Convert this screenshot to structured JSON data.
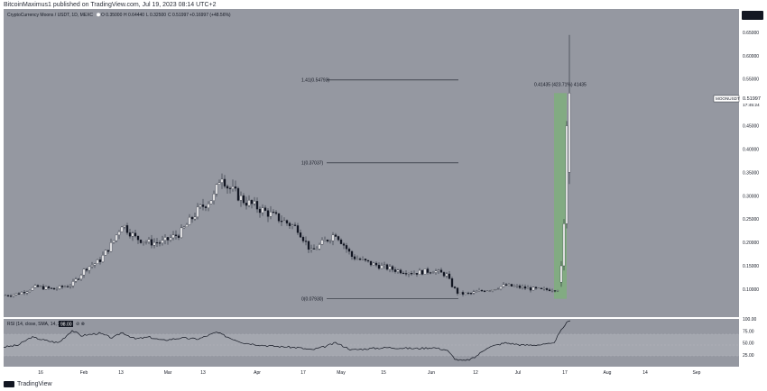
{
  "header": {
    "publisher": "BitcoinMaximus1 published on TradingView.com, Jul 19, 2023 08:14 UTC+2"
  },
  "footer": {
    "brand": "TradingView"
  },
  "symbol": {
    "title": "CryptoCurrency Moons / USDT, 1D, MEXC",
    "ohlc": [
      {
        "k": "O",
        "v": "0.35000"
      },
      {
        "k": "H",
        "v": "0.64440"
      },
      {
        "k": "L",
        "v": "0.32500"
      },
      {
        "k": "C",
        "v": "0.51997"
      }
    ],
    "change": "+0.16997 (+48.56%)"
  },
  "price_tag": {
    "symbol": "MOONUSDT",
    "price": "0.51997",
    "countdown": "17:45:24"
  },
  "fib_levels": [
    {
      "label": "1.41(0.54793)",
      "value": 0.54793
    },
    {
      "label": "1(0.37037)",
      "value": 0.37037
    },
    {
      "label": "0(0.07930)",
      "value": 0.0793
    }
  ],
  "measure_label": "0.41435 (423.71%) 41435",
  "rsi": {
    "title": "RSI (14, close, SMA, 14, 2)",
    "value": "98.00",
    "ticks": [
      "100.00",
      "75.00",
      "50.00",
      "25.00"
    ]
  },
  "colors": {
    "background": "#9598a1",
    "up": "#ffffff",
    "down": "#131722",
    "measure": "#7fae7d",
    "rsi_band": "#a4a7af"
  },
  "chart_data": [
    {
      "type": "candlestick",
      "title": "CryptoCurrency Moons / USDT, 1D, MEXC",
      "ylim": [
        0.04,
        0.7
      ],
      "y_ticks": [
        "0.65000",
        "0.60000",
        "0.55000",
        "0.50000",
        "0.45000",
        "0.40000",
        "0.35000",
        "0.30000",
        "0.25000",
        "0.20000",
        "0.15000",
        "0.10000"
      ],
      "x_ticks": [
        "16",
        "Feb",
        "13",
        "Mar",
        "13",
        "Apr",
        "17",
        "May",
        "15",
        "Jun",
        "12",
        "Jul",
        "17",
        "Aug",
        "14",
        "Sep"
      ],
      "x_tick_positions": [
        45,
        93,
        134,
        186,
        225,
        285,
        336,
        378,
        425,
        478,
        527,
        574,
        626,
        673,
        715,
        772
      ],
      "anchors": [
        [
          0,
          0.085
        ],
        [
          20,
          0.09
        ],
        [
          40,
          0.105
        ],
        [
          60,
          0.1
        ],
        [
          80,
          0.11
        ],
        [
          95,
          0.145
        ],
        [
          110,
          0.16
        ],
        [
          125,
          0.2
        ],
        [
          135,
          0.24
        ],
        [
          150,
          0.21
        ],
        [
          165,
          0.2
        ],
        [
          180,
          0.2
        ],
        [
          200,
          0.22
        ],
        [
          220,
          0.27
        ],
        [
          238,
          0.3
        ],
        [
          245,
          0.35
        ],
        [
          252,
          0.32
        ],
        [
          270,
          0.29
        ],
        [
          290,
          0.27
        ],
        [
          310,
          0.25
        ],
        [
          330,
          0.23
        ],
        [
          345,
          0.18
        ],
        [
          355,
          0.195
        ],
        [
          372,
          0.22
        ],
        [
          390,
          0.17
        ],
        [
          410,
          0.155
        ],
        [
          440,
          0.14
        ],
        [
          460,
          0.135
        ],
        [
          480,
          0.14
        ],
        [
          495,
          0.13
        ],
        [
          500,
          0.11
        ],
        [
          508,
          0.09
        ],
        [
          520,
          0.09
        ],
        [
          530,
          0.095
        ],
        [
          545,
          0.1
        ],
        [
          560,
          0.108
        ],
        [
          580,
          0.103
        ],
        [
          600,
          0.098
        ],
        [
          613,
          0.1
        ],
        [
          618,
          0.1
        ],
        [
          620,
          0.11
        ]
      ],
      "spike": [
        {
          "x": 622,
          "o": 0.115,
          "h": 0.16,
          "l": 0.105,
          "c": 0.15
        },
        {
          "x": 625,
          "o": 0.15,
          "h": 0.25,
          "l": 0.14,
          "c": 0.24
        },
        {
          "x": 628,
          "o": 0.24,
          "h": 0.46,
          "l": 0.23,
          "c": 0.45
        },
        {
          "x": 631,
          "o": 0.35,
          "h": 0.6444,
          "l": 0.325,
          "c": 0.51997
        }
      ]
    },
    {
      "type": "line",
      "title": "RSI (14, close, SMA, 14, 2)",
      "ylim": [
        0,
        100
      ],
      "anchors": [
        [
          0,
          40
        ],
        [
          20,
          45
        ],
        [
          35,
          62
        ],
        [
          50,
          55
        ],
        [
          65,
          50
        ],
        [
          80,
          76
        ],
        [
          90,
          65
        ],
        [
          110,
          70
        ],
        [
          125,
          60
        ],
        [
          135,
          72
        ],
        [
          150,
          58
        ],
        [
          165,
          62
        ],
        [
          180,
          55
        ],
        [
          200,
          60
        ],
        [
          220,
          58
        ],
        [
          240,
          72
        ],
        [
          255,
          60
        ],
        [
          270,
          50
        ],
        [
          290,
          45
        ],
        [
          310,
          42
        ],
        [
          330,
          40
        ],
        [
          345,
          35
        ],
        [
          360,
          42
        ],
        [
          372,
          50
        ],
        [
          390,
          35
        ],
        [
          410,
          38
        ],
        [
          430,
          40
        ],
        [
          460,
          38
        ],
        [
          480,
          40
        ],
        [
          495,
          35
        ],
        [
          505,
          15
        ],
        [
          515,
          12
        ],
        [
          525,
          18
        ],
        [
          540,
          40
        ],
        [
          560,
          50
        ],
        [
          580,
          45
        ],
        [
          600,
          46
        ],
        [
          613,
          48
        ],
        [
          620,
          70
        ],
        [
          627,
          90
        ],
        [
          632,
          98
        ]
      ]
    }
  ]
}
